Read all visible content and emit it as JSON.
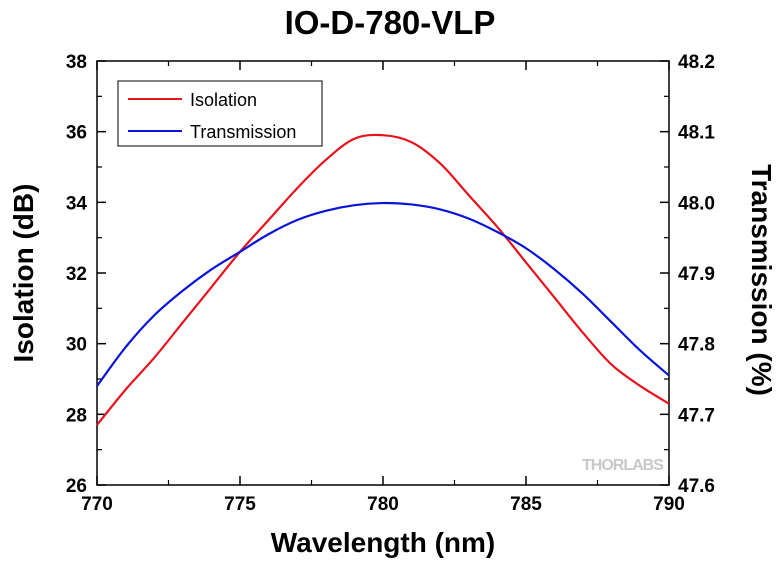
{
  "chart_data": {
    "type": "line",
    "title": "IO-D-780-VLP",
    "xlabel": "Wavelength (nm)",
    "ylabel": "Isolation (dB)",
    "y2label": "Transmission (%)",
    "xlim": [
      770,
      790
    ],
    "ylim": [
      26,
      38
    ],
    "y2lim": [
      47.6,
      48.2
    ],
    "xticks": [
      "770",
      "775",
      "780",
      "785",
      "790"
    ],
    "yticks": [
      "26",
      "28",
      "30",
      "32",
      "34",
      "36",
      "38"
    ],
    "y2ticks": [
      "47.6",
      "47.7",
      "47.8",
      "47.9",
      "48.0",
      "48.1",
      "48.2"
    ],
    "grid": false,
    "legend_position": "top-left",
    "series": [
      {
        "name": "Isolation",
        "axis": "left",
        "color": "#e8121c",
        "x": [
          770,
          771,
          772,
          773,
          774,
          775,
          776,
          777,
          778,
          779,
          780,
          781,
          782,
          783,
          784,
          785,
          786,
          787,
          788,
          789,
          790
        ],
        "values": [
          27.7,
          28.7,
          29.6,
          30.6,
          31.6,
          32.6,
          33.5,
          34.4,
          35.2,
          35.8,
          35.9,
          35.7,
          35.1,
          34.2,
          33.3,
          32.3,
          31.3,
          30.3,
          29.4,
          28.8,
          28.3
        ]
      },
      {
        "name": "Transmission",
        "axis": "right",
        "color": "#0a14d8",
        "x": [
          770,
          771,
          772,
          773,
          774,
          775,
          776,
          777,
          778,
          779,
          780,
          781,
          782,
          783,
          784,
          785,
          786,
          787,
          788,
          789,
          790
        ],
        "values": [
          47.74,
          47.795,
          47.84,
          47.875,
          47.905,
          47.93,
          47.955,
          47.975,
          47.988,
          47.996,
          47.999,
          47.997,
          47.99,
          47.977,
          47.958,
          47.935,
          47.905,
          47.87,
          47.83,
          47.79,
          47.755
        ]
      }
    ]
  },
  "watermark": "THORLABS"
}
